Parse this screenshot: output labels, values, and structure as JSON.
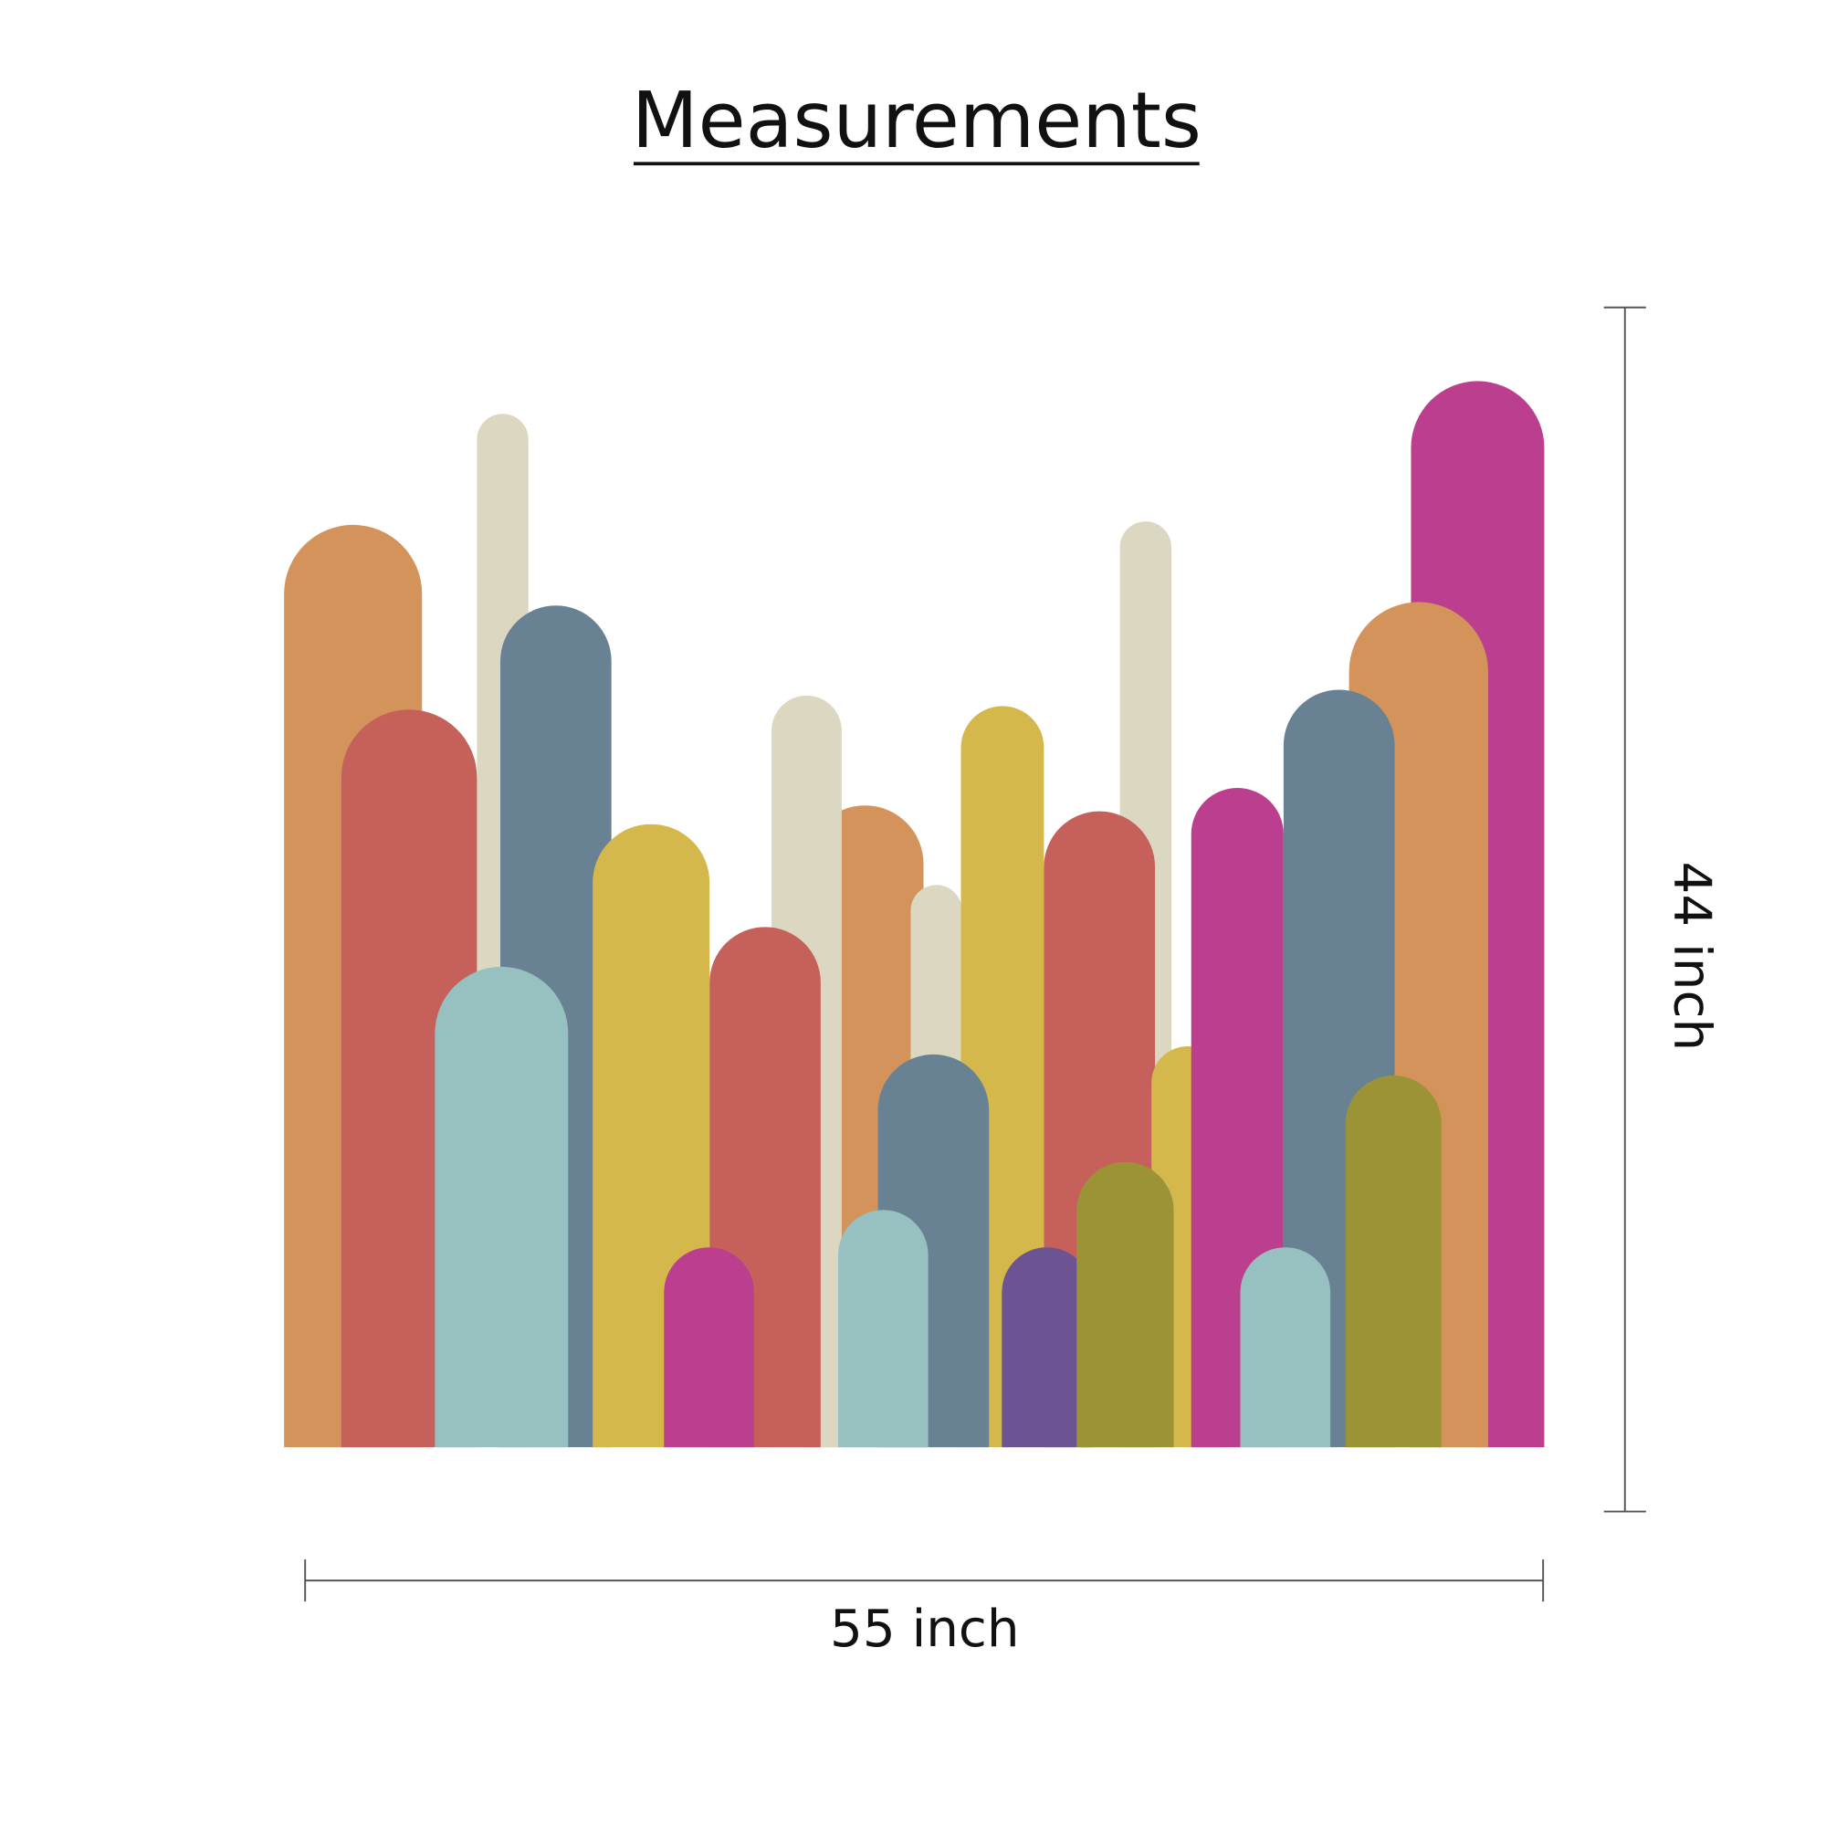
{
  "title": "Measurements",
  "height_label": "44 inch",
  "width_label": "55 inch"
}
